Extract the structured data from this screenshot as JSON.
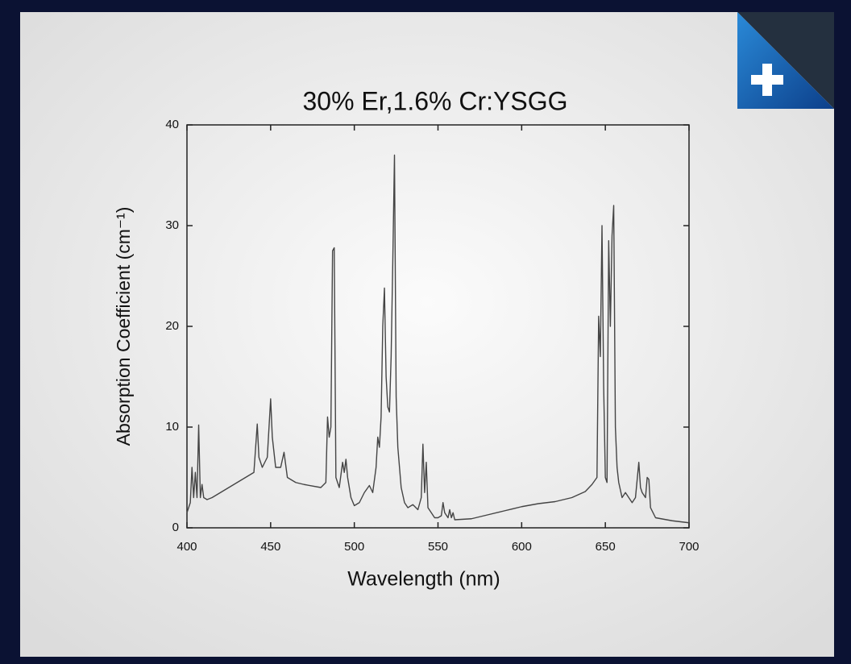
{
  "chart_data": {
    "type": "line",
    "title": "30% Er,1.6% Cr:YSGG",
    "x_label": "Wavelength (nm)",
    "y_label": "Absorption Coefficient (cm⁻¹)",
    "xlim": [
      400,
      700
    ],
    "ylim": [
      0,
      40
    ],
    "xticks": [
      400,
      450,
      500,
      550,
      600,
      650,
      700
    ],
    "yticks": [
      0,
      10,
      20,
      30,
      40
    ],
    "series": [
      {
        "color": "#444444",
        "x": [
          400,
          402,
          403,
          404,
          405,
          406,
          407,
          408,
          409,
          410,
          412,
          415,
          420,
          430,
          440,
          442,
          443,
          445,
          448,
          450,
          451,
          453,
          456,
          458,
          460,
          465,
          470,
          480,
          483,
          484,
          485,
          486,
          487,
          488,
          489,
          491,
          493,
          494,
          495,
          496,
          498,
          500,
          503,
          506,
          509,
          511,
          513,
          514,
          515,
          516,
          517,
          518,
          519,
          520,
          521,
          522,
          523,
          524,
          525,
          526,
          527,
          528,
          530,
          532,
          535,
          538,
          540,
          541,
          542,
          543,
          544,
          546,
          548,
          550,
          552,
          553,
          554,
          556,
          557,
          558,
          559,
          560,
          570,
          580,
          590,
          600,
          610,
          620,
          630,
          638,
          642,
          645,
          646,
          647,
          648,
          649,
          650,
          651,
          652,
          653,
          654,
          655,
          656,
          657,
          658,
          660,
          662,
          664,
          666,
          668,
          670,
          671,
          672,
          674,
          675,
          676,
          677,
          680,
          690,
          700
        ],
        "values": [
          1.5,
          2.5,
          6,
          3,
          5.5,
          3,
          10.2,
          3,
          4.3,
          3,
          2.8,
          3,
          3.5,
          4.5,
          5.5,
          10.3,
          7,
          6,
          7,
          12.8,
          9,
          6,
          6,
          7.5,
          5,
          4.5,
          4.3,
          4,
          4.5,
          11,
          9,
          10,
          27.5,
          27.8,
          5,
          4,
          6.5,
          5.5,
          6.8,
          5,
          3,
          2.2,
          2.5,
          3.5,
          4.2,
          3.5,
          6,
          9,
          8,
          11,
          20,
          23.8,
          15,
          12,
          11.5,
          17,
          26.5,
          37,
          13,
          8,
          6,
          4,
          2.5,
          2,
          2.3,
          1.8,
          3,
          8.3,
          3.5,
          6.5,
          2,
          1.5,
          1,
          1,
          1.2,
          2.5,
          1.5,
          1,
          1.8,
          1,
          1.5,
          0.8,
          0.9,
          1.3,
          1.7,
          2.1,
          2.4,
          2.6,
          3,
          3.6,
          4.3,
          5,
          21,
          17,
          30,
          14,
          5,
          4.5,
          28.5,
          20,
          29,
          32,
          10,
          6,
          4.5,
          3,
          3.5,
          3,
          2.5,
          3,
          6.5,
          4,
          3.5,
          3,
          5,
          4.8,
          2,
          1,
          0.7,
          0.5
        ]
      }
    ]
  }
}
